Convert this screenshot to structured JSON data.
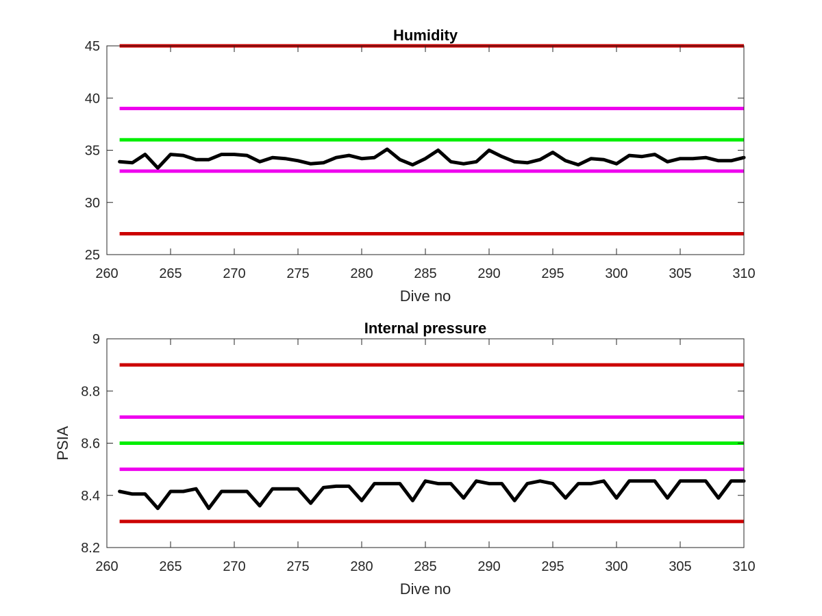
{
  "chart_data": [
    {
      "type": "line",
      "title": "Humidity",
      "xlabel": "Dive no",
      "ylabel": "",
      "xlim": [
        260,
        310
      ],
      "ylim": [
        25,
        45
      ],
      "xticks": [
        "260",
        "265",
        "270",
        "275",
        "280",
        "285",
        "290",
        "295",
        "300",
        "305",
        "310"
      ],
      "yticks": [
        "25",
        "30",
        "35",
        "40",
        "45"
      ],
      "grid": false,
      "thresholds": [
        {
          "value": 45,
          "color": "#cc0000"
        },
        {
          "value": 39,
          "color": "#ee00ee"
        },
        {
          "value": 36,
          "color": "#00ee00"
        },
        {
          "value": 33,
          "color": "#ee00ee"
        },
        {
          "value": 27,
          "color": "#cc0000"
        }
      ],
      "series": [
        {
          "color": "#000000",
          "x": [
            261,
            262,
            263,
            264,
            265,
            266,
            267,
            268,
            269,
            270,
            271,
            272,
            273,
            274,
            275,
            276,
            277,
            278,
            279,
            280,
            281,
            282,
            283,
            284,
            285,
            286,
            287,
            288,
            289,
            290,
            291,
            292,
            293,
            294,
            295,
            296,
            297,
            298,
            299,
            300,
            301,
            302,
            303,
            304,
            305,
            306,
            307,
            308,
            309,
            310
          ],
          "y": [
            33.9,
            33.8,
            34.6,
            33.3,
            34.6,
            34.5,
            34.1,
            34.1,
            34.6,
            34.6,
            34.5,
            33.9,
            34.3,
            34.2,
            34.0,
            33.7,
            33.8,
            34.3,
            34.5,
            34.2,
            34.3,
            35.1,
            34.1,
            33.6,
            34.2,
            35.0,
            33.9,
            33.7,
            33.9,
            35.0,
            34.4,
            33.9,
            33.8,
            34.1,
            34.8,
            34.0,
            33.6,
            34.2,
            34.1,
            33.7,
            34.5,
            34.4,
            34.6,
            33.9,
            34.2,
            34.2,
            34.3,
            34.0,
            34.0,
            34.3
          ]
        }
      ]
    },
    {
      "type": "line",
      "title": "Internal pressure",
      "xlabel": "Dive no",
      "ylabel": "PSIA",
      "xlim": [
        260,
        310
      ],
      "ylim": [
        8.2,
        9.0
      ],
      "xticks": [
        "260",
        "265",
        "270",
        "275",
        "280",
        "285",
        "290",
        "295",
        "300",
        "305",
        "310"
      ],
      "yticks": [
        "8.2",
        "8.4",
        "8.6",
        "8.8",
        "9"
      ],
      "grid": false,
      "thresholds": [
        {
          "value": 8.9,
          "color": "#cc0000"
        },
        {
          "value": 8.7,
          "color": "#ee00ee"
        },
        {
          "value": 8.6,
          "color": "#00ee00"
        },
        {
          "value": 8.5,
          "color": "#ee00ee"
        },
        {
          "value": 8.3,
          "color": "#cc0000"
        }
      ],
      "series": [
        {
          "color": "#000000",
          "x": [
            261,
            262,
            263,
            264,
            265,
            266,
            267,
            268,
            269,
            270,
            271,
            272,
            273,
            274,
            275,
            276,
            277,
            278,
            279,
            280,
            281,
            282,
            283,
            284,
            285,
            286,
            287,
            288,
            289,
            290,
            291,
            292,
            293,
            294,
            295,
            296,
            297,
            298,
            299,
            300,
            301,
            302,
            303,
            304,
            305,
            306,
            307,
            308,
            309,
            310
          ],
          "y": [
            8.415,
            8.405,
            8.405,
            8.35,
            8.415,
            8.415,
            8.425,
            8.35,
            8.415,
            8.415,
            8.415,
            8.36,
            8.425,
            8.425,
            8.425,
            8.37,
            8.43,
            8.435,
            8.435,
            8.38,
            8.445,
            8.445,
            8.445,
            8.38,
            8.455,
            8.445,
            8.445,
            8.39,
            8.455,
            8.445,
            8.445,
            8.38,
            8.445,
            8.455,
            8.445,
            8.39,
            8.445,
            8.445,
            8.455,
            8.39,
            8.455,
            8.455,
            8.455,
            8.39,
            8.455,
            8.455,
            8.455,
            8.39,
            8.455,
            8.455
          ]
        }
      ]
    }
  ]
}
